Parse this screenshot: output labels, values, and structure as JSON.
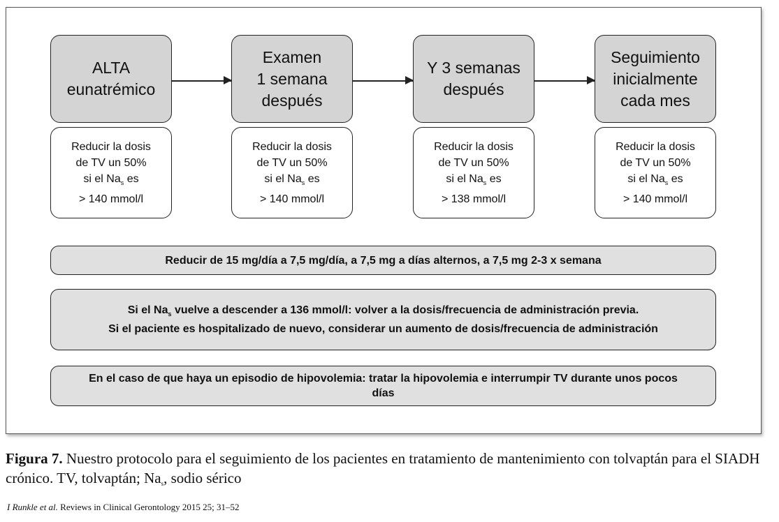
{
  "steps": [
    {
      "title": [
        "ALTA",
        "eunatrémico"
      ],
      "detail": {
        "l1": "Reducir la dosis",
        "l2": "de TV un 50%",
        "l3a": "si el Na",
        "l3sub": "s",
        "l3b": " es",
        "l4": "> 140 mmol/l"
      }
    },
    {
      "title": [
        "Examen",
        "1 semana",
        "después"
      ],
      "detail": {
        "l1": "Reducir la dosis",
        "l2": "de TV un 50%",
        "l3a": "si el Na",
        "l3sub": "s",
        "l3b": " es",
        "l4": "> 140 mmol/l"
      }
    },
    {
      "title": [
        "Y 3 semanas",
        "después"
      ],
      "detail": {
        "l1": "Reducir la dosis",
        "l2": "de TV un 50%",
        "l3a": "si el Na",
        "l3sub": "s",
        "l3b": " es",
        "l4": "> 138 mmol/l"
      }
    },
    {
      "title": [
        "Seguimiento",
        "inicialmente",
        "cada mes"
      ],
      "detail": {
        "l1": "Reducir la dosis",
        "l2": "de TV un 50%",
        "l3a": "si el Na",
        "l3sub": "s",
        "l3b": " es",
        "l4": "> 140 mmol/l"
      }
    }
  ],
  "bars": {
    "dose": "Reducir de 15 mg/día a 7,5 mg/día, a 7,5 mg a días alternos, a 7,5 mg 2-3 x semana",
    "relapse": {
      "a": "Si el Na",
      "sub": "s",
      "b": " vuelve a descender a 136 mmol/l: volver a la dosis/frecuencia de administración previa.",
      "c": "Si el paciente es hospitalizado de nuevo, considerar un aumento de dosis/frecuencia de administración"
    },
    "hypovolemia": "En el caso de que haya un episodio de hipovolemia: tratar la hipovolemia e interrumpir TV durante unos pocos días"
  },
  "caption": {
    "label": "Figura 7.",
    "text_a": " Nuestro protocolo para el seguimiento de los pacientes en tratamiento de mantenimiento con tolvaptán para el SIADH crónico. TV, tolvaptán; Na",
    "sub": "s",
    "text_b": ", sodio sérico"
  },
  "citation": {
    "authors": "I Runkle et al.",
    "source": " Reviews in Clinical Gerontology 2015 25; 31–52"
  }
}
